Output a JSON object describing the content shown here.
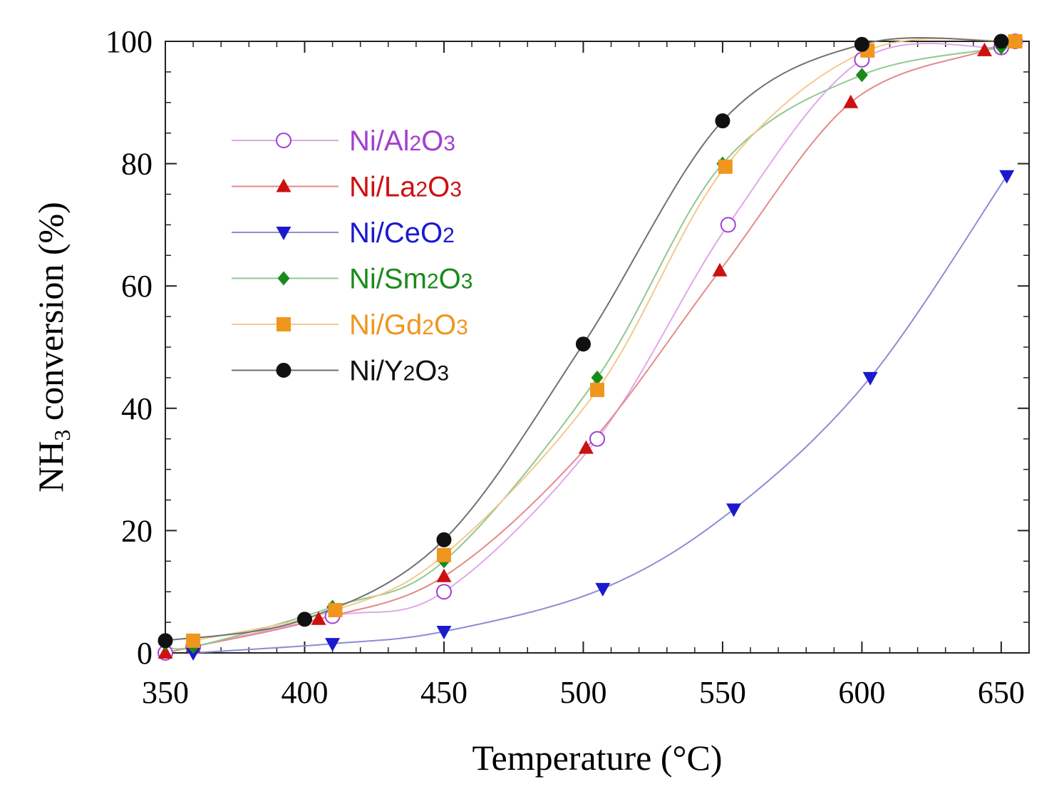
{
  "chart_data": {
    "type": "line",
    "title": "",
    "xlabel": "Temperature (°C)",
    "ylabel_main": "NH",
    "ylabel_sub": "3",
    "ylabel_rest": " conversion (%)",
    "xlim": [
      350,
      660
    ],
    "ylim": [
      0,
      100
    ],
    "xticks": [
      350,
      400,
      450,
      500,
      550,
      600,
      650
    ],
    "yticks": [
      0,
      20,
      40,
      60,
      80,
      100
    ],
    "legend_position": "top-left",
    "series": [
      {
        "name": "Ni/Al2O3",
        "label_parts": [
          "Ni/Al",
          "2",
          "O",
          "3"
        ],
        "color": "#a23fd1",
        "line_color": "#e0a8e8",
        "marker": "circle-open",
        "x": [
          350,
          360,
          410,
          450,
          505,
          552,
          600,
          650,
          655
        ],
        "y": [
          0,
          1,
          6,
          10,
          35,
          70,
          97,
          99,
          100
        ]
      },
      {
        "name": "Ni/La2O3",
        "label_parts": [
          "Ni/La",
          "2",
          "O",
          "3"
        ],
        "color": "#cc1111",
        "line_color": "#e58a8a",
        "marker": "triangle-up",
        "x": [
          350,
          360,
          405,
          450,
          501,
          549,
          596,
          644,
          655
        ],
        "y": [
          0,
          1,
          5.5,
          12.5,
          33.5,
          62.5,
          90,
          98.5,
          100
        ]
      },
      {
        "name": "Ni/CeO2",
        "label_parts": [
          "Ni/CeO",
          "2",
          "",
          ""
        ],
        "color": "#1a1acc",
        "line_color": "#8c8cd6",
        "marker": "triangle-down",
        "x": [
          360,
          410,
          450,
          507,
          554,
          603,
          652
        ],
        "y": [
          0,
          1.5,
          3.5,
          10.5,
          23.5,
          45,
          78
        ]
      },
      {
        "name": "Ni/Sm2O3",
        "label_parts": [
          "Ni/Sm",
          "2",
          "O",
          "3"
        ],
        "color": "#1b8a1b",
        "line_color": "#90c890",
        "marker": "diamond",
        "x": [
          350,
          360,
          410,
          450,
          505,
          550,
          600,
          650,
          655
        ],
        "y": [
          1.5,
          1,
          7.5,
          15,
          45,
          80,
          94.5,
          99,
          100
        ]
      },
      {
        "name": "Ni/Gd2O3",
        "label_parts": [
          "Ni/Gd",
          "2",
          "O",
          "3"
        ],
        "color": "#f0961e",
        "line_color": "#f4c98c",
        "marker": "square",
        "x": [
          360,
          411,
          450,
          505,
          551,
          602,
          655
        ],
        "y": [
          2,
          7,
          16,
          43,
          79.5,
          98.5,
          100
        ]
      },
      {
        "name": "Ni/Y2O3",
        "label_parts": [
          "Ni/Y",
          "2",
          "O",
          "3"
        ],
        "color": "#111111",
        "line_color": "#707070",
        "marker": "circle",
        "x": [
          350,
          400,
          450,
          500,
          550,
          600,
          650
        ],
        "y": [
          2,
          5.5,
          18.5,
          50.5,
          87,
          99.5,
          100
        ]
      }
    ]
  }
}
